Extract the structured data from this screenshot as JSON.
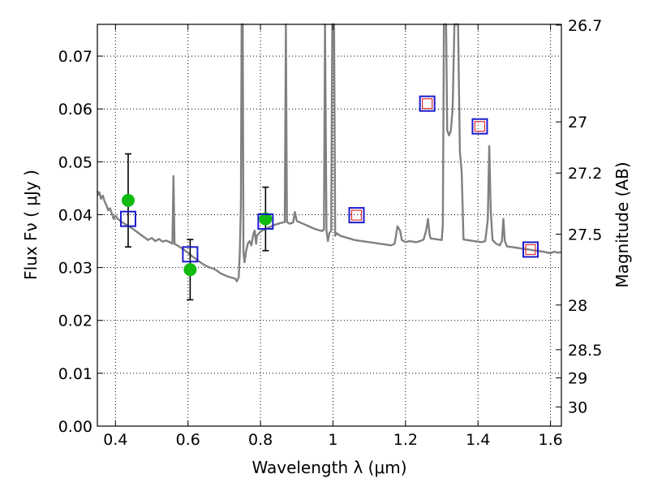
{
  "chart_data": {
    "type": "scatter",
    "xlabel": "Wavelength  λ (μm)",
    "ylabel": "Flux  Fν  ( μJy )",
    "y2label": "Magnitude (AB)",
    "xlim": [
      0.35,
      1.63
    ],
    "ylim": [
      0.0,
      0.076
    ],
    "grid": true,
    "x_ticks": [
      0.4,
      0.6,
      0.8,
      1.0,
      1.2,
      1.4,
      1.6
    ],
    "x_tick_labels": [
      "0.4",
      "0.6",
      "0.8",
      "1",
      "1.2",
      "1.4",
      "1.6"
    ],
    "y_ticks": [
      0.0,
      0.01,
      0.02,
      0.03,
      0.04,
      0.05,
      0.06,
      0.07
    ],
    "y_tick_labels": [
      "0.00",
      "0.01",
      "0.02",
      "0.03",
      "0.04",
      "0.05",
      "0.06",
      "0.07"
    ],
    "y2_ticks": [
      26.7,
      27,
      27.2,
      27.5,
      28,
      28.5,
      29,
      30
    ],
    "y2_tick_labels": [
      "26.7",
      "27",
      "27.2",
      "27.5",
      "28",
      "28.5",
      "29",
      "30"
    ],
    "colors": {
      "spectrum": "#808080",
      "observed": "#11bb11",
      "model_box": "#1a1acc",
      "model_inner": "#e03030",
      "errorbar": "#000000"
    },
    "series": [
      {
        "kind": "spectrum",
        "points": [
          [
            0.35,
            0.0445
          ],
          [
            0.353,
            0.0438
          ],
          [
            0.356,
            0.0442
          ],
          [
            0.36,
            0.043
          ],
          [
            0.365,
            0.0436
          ],
          [
            0.37,
            0.0425
          ],
          [
            0.375,
            0.0418
          ],
          [
            0.38,
            0.0408
          ],
          [
            0.385,
            0.0412
          ],
          [
            0.39,
            0.0402
          ],
          [
            0.395,
            0.0392
          ],
          [
            0.4,
            0.0398
          ],
          [
            0.405,
            0.0393
          ],
          [
            0.41,
            0.039
          ],
          [
            0.42,
            0.0385
          ],
          [
            0.43,
            0.0381
          ],
          [
            0.44,
            0.0377
          ],
          [
            0.45,
            0.0372
          ],
          [
            0.46,
            0.0367
          ],
          [
            0.47,
            0.0362
          ],
          [
            0.48,
            0.0357
          ],
          [
            0.49,
            0.0352
          ],
          [
            0.5,
            0.0356
          ],
          [
            0.51,
            0.035
          ],
          [
            0.52,
            0.0354
          ],
          [
            0.53,
            0.0349
          ],
          [
            0.54,
            0.0351
          ],
          [
            0.55,
            0.0348
          ],
          [
            0.557,
            0.0345
          ],
          [
            0.56,
            0.0473
          ],
          [
            0.563,
            0.0345
          ],
          [
            0.57,
            0.0342
          ],
          [
            0.58,
            0.0338
          ],
          [
            0.59,
            0.0333
          ],
          [
            0.6,
            0.0328
          ],
          [
            0.61,
            0.0322
          ],
          [
            0.62,
            0.0317
          ],
          [
            0.63,
            0.0312
          ],
          [
            0.64,
            0.0307
          ],
          [
            0.65,
            0.0303
          ],
          [
            0.66,
            0.03
          ],
          [
            0.67,
            0.0298
          ],
          [
            0.68,
            0.0294
          ],
          [
            0.69,
            0.0289
          ],
          [
            0.7,
            0.0286
          ],
          [
            0.71,
            0.0283
          ],
          [
            0.72,
            0.0281
          ],
          [
            0.73,
            0.0279
          ],
          [
            0.735,
            0.0274
          ],
          [
            0.74,
            0.0282
          ],
          [
            0.743,
            0.033
          ],
          [
            0.746,
            0.042
          ],
          [
            0.748,
            0.076
          ],
          [
            0.751,
            0.076
          ],
          [
            0.753,
            0.033
          ],
          [
            0.756,
            0.031
          ],
          [
            0.76,
            0.033
          ],
          [
            0.765,
            0.0345
          ],
          [
            0.77,
            0.035
          ],
          [
            0.775,
            0.0342
          ],
          [
            0.78,
            0.0362
          ],
          [
            0.784,
            0.037
          ],
          [
            0.788,
            0.0345
          ],
          [
            0.79,
            0.036
          ],
          [
            0.8,
            0.0368
          ],
          [
            0.81,
            0.0372
          ],
          [
            0.82,
            0.0375
          ],
          [
            0.83,
            0.0378
          ],
          [
            0.84,
            0.0381
          ],
          [
            0.85,
            0.0383
          ],
          [
            0.86,
            0.0385
          ],
          [
            0.867,
            0.0386
          ],
          [
            0.87,
            0.076
          ],
          [
            0.873,
            0.0386
          ],
          [
            0.88,
            0.0383
          ],
          [
            0.89,
            0.0385
          ],
          [
            0.895,
            0.0405
          ],
          [
            0.9,
            0.0388
          ],
          [
            0.91,
            0.0385
          ],
          [
            0.92,
            0.0382
          ],
          [
            0.93,
            0.0379
          ],
          [
            0.94,
            0.0376
          ],
          [
            0.95,
            0.0373
          ],
          [
            0.96,
            0.0371
          ],
          [
            0.97,
            0.0369
          ],
          [
            0.975,
            0.0372
          ],
          [
            0.978,
            0.076
          ],
          [
            0.982,
            0.037
          ],
          [
            0.986,
            0.035
          ],
          [
            0.99,
            0.0365
          ],
          [
            0.995,
            0.037
          ],
          [
            0.998,
            0.076
          ],
          [
            1.003,
            0.076
          ],
          [
            1.006,
            0.036
          ],
          [
            1.01,
            0.0365
          ],
          [
            1.02,
            0.036
          ],
          [
            1.03,
            0.0358
          ],
          [
            1.04,
            0.0356
          ],
          [
            1.05,
            0.0354
          ],
          [
            1.06,
            0.0352
          ],
          [
            1.07,
            0.0351
          ],
          [
            1.08,
            0.035
          ],
          [
            1.09,
            0.0349
          ],
          [
            1.1,
            0.0348
          ],
          [
            1.11,
            0.0347
          ],
          [
            1.12,
            0.0346
          ],
          [
            1.13,
            0.0345
          ],
          [
            1.14,
            0.0344
          ],
          [
            1.15,
            0.0343
          ],
          [
            1.16,
            0.0342
          ],
          [
            1.17,
            0.0345
          ],
          [
            1.178,
            0.0378
          ],
          [
            1.185,
            0.037
          ],
          [
            1.19,
            0.0352
          ],
          [
            1.2,
            0.0348
          ],
          [
            1.21,
            0.035
          ],
          [
            1.22,
            0.0349
          ],
          [
            1.23,
            0.0348
          ],
          [
            1.24,
            0.035
          ],
          [
            1.25,
            0.0353
          ],
          [
            1.257,
            0.037
          ],
          [
            1.262,
            0.0392
          ],
          [
            1.267,
            0.036
          ],
          [
            1.27,
            0.0355
          ],
          [
            1.28,
            0.0354
          ],
          [
            1.29,
            0.0353
          ],
          [
            1.3,
            0.0352
          ],
          [
            1.303,
            0.038
          ],
          [
            1.306,
            0.076
          ],
          [
            1.312,
            0.076
          ],
          [
            1.315,
            0.056
          ],
          [
            1.32,
            0.055
          ],
          [
            1.325,
            0.0558
          ],
          [
            1.33,
            0.06
          ],
          [
            1.335,
            0.076
          ],
          [
            1.345,
            0.076
          ],
          [
            1.35,
            0.052
          ],
          [
            1.355,
            0.048
          ],
          [
            1.36,
            0.0353
          ],
          [
            1.37,
            0.0352
          ],
          [
            1.38,
            0.0351
          ],
          [
            1.39,
            0.035
          ],
          [
            1.4,
            0.0349
          ],
          [
            1.41,
            0.0348
          ],
          [
            1.42,
            0.035
          ],
          [
            1.427,
            0.039
          ],
          [
            1.431,
            0.053
          ],
          [
            1.435,
            0.041
          ],
          [
            1.44,
            0.0352
          ],
          [
            1.45,
            0.0345
          ],
          [
            1.46,
            0.0342
          ],
          [
            1.466,
            0.035
          ],
          [
            1.47,
            0.0392
          ],
          [
            1.474,
            0.035
          ],
          [
            1.48,
            0.034
          ],
          [
            1.5,
            0.0338
          ],
          [
            1.52,
            0.0336
          ],
          [
            1.54,
            0.0334
          ],
          [
            1.56,
            0.0332
          ],
          [
            1.58,
            0.033
          ],
          [
            1.6,
            0.0327
          ],
          [
            1.61,
            0.033
          ],
          [
            1.62,
            0.0328
          ],
          [
            1.63,
            0.0329
          ]
        ]
      },
      {
        "kind": "observed",
        "points": [
          {
            "x": 0.435,
            "y": 0.0427,
            "yerr": 0.0088
          },
          {
            "x": 0.606,
            "y": 0.0296,
            "yerr": 0.0057
          },
          {
            "x": 0.814,
            "y": 0.0392,
            "yerr": 0.006
          }
        ]
      },
      {
        "kind": "model_box",
        "points": [
          {
            "x": 0.435,
            "y": 0.0392
          },
          {
            "x": 0.606,
            "y": 0.0325
          },
          {
            "x": 0.814,
            "y": 0.0387
          },
          {
            "x": 1.065,
            "y": 0.0399
          },
          {
            "x": 1.26,
            "y": 0.061
          },
          {
            "x": 1.405,
            "y": 0.0567
          },
          {
            "x": 1.545,
            "y": 0.0334
          }
        ]
      },
      {
        "kind": "model_inner",
        "points": [
          {
            "x": 1.065,
            "y": 0.0399
          },
          {
            "x": 1.26,
            "y": 0.061
          },
          {
            "x": 1.405,
            "y": 0.0567
          },
          {
            "x": 1.545,
            "y": 0.0334
          }
        ]
      }
    ]
  }
}
